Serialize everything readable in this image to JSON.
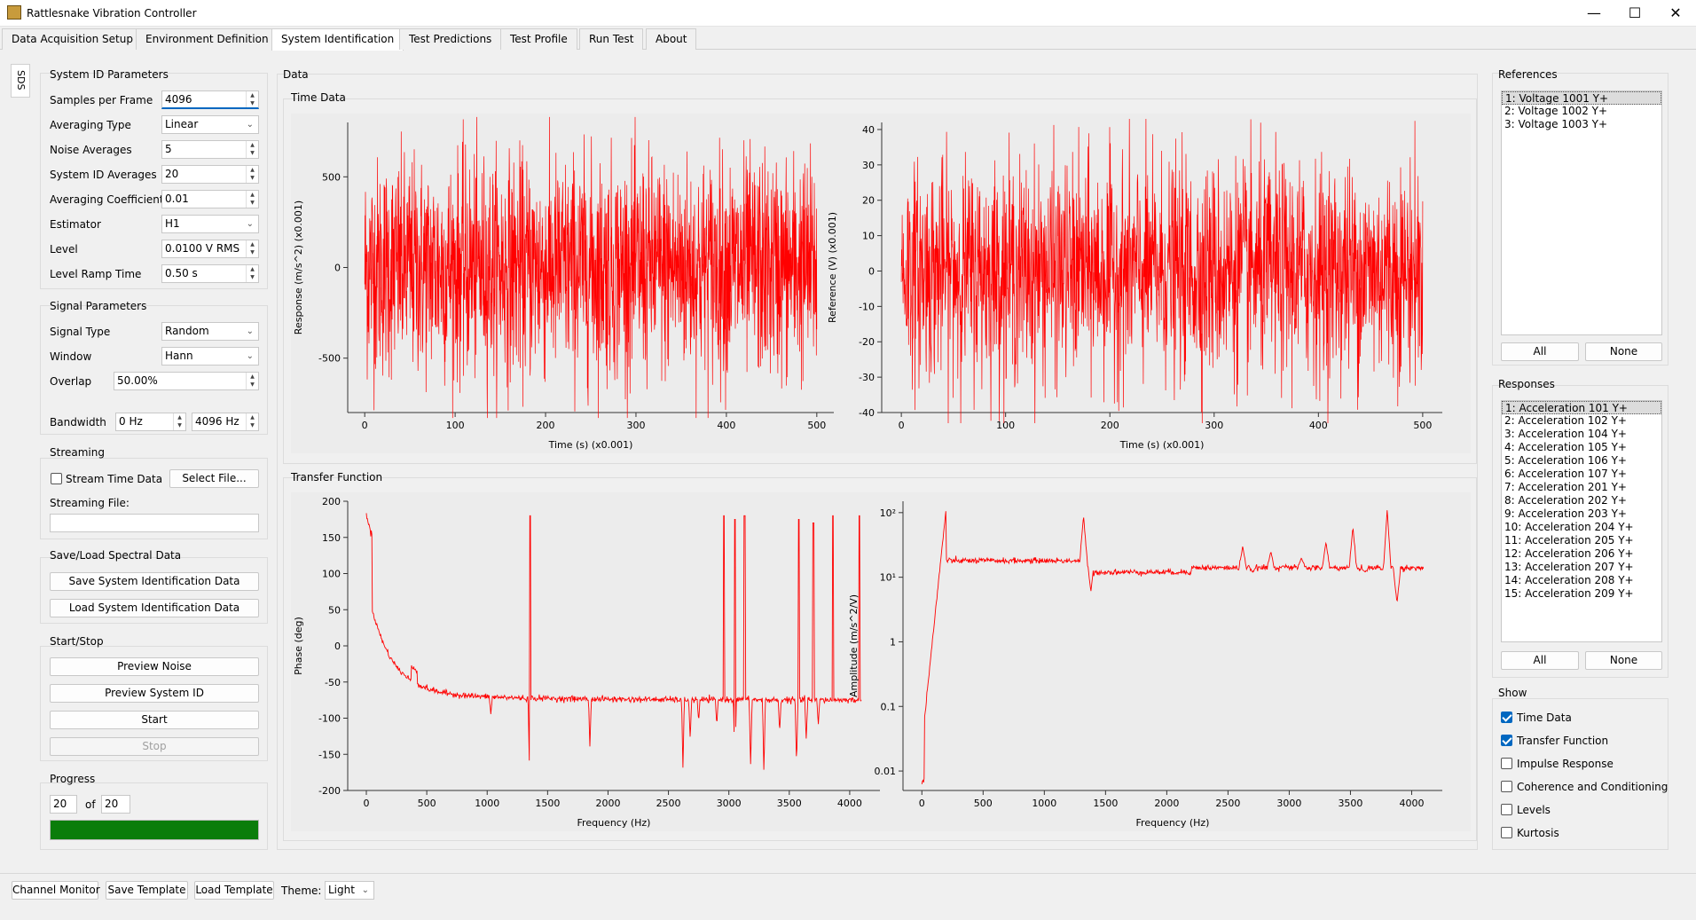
{
  "window": {
    "title": "Rattlesnake Vibration Controller",
    "minimize": "—",
    "maximize": "☐",
    "close": "✕"
  },
  "tabs": [
    "Data Acquisition Setup",
    "Environment Definition",
    "System Identification",
    "Test Predictions",
    "Test Profile",
    "Run Test",
    "About"
  ],
  "side_tab": "SDS",
  "sysid": {
    "title": "System ID Parameters",
    "samples_per_frame_label": "Samples per Frame",
    "samples_per_frame": "4096",
    "averaging_type_label": "Averaging Type",
    "averaging_type": "Linear",
    "noise_averages_label": "Noise Averages",
    "noise_averages": "5",
    "sysid_averages_label": "System ID Averages",
    "sysid_averages": "20",
    "averaging_coefficient_label": "Averaging Coefficient",
    "averaging_coefficient": "0.01",
    "estimator_label": "Estimator",
    "estimator": "H1",
    "level_label": "Level",
    "level": "0.0100 V RMS",
    "level_ramp_label": "Level Ramp Time",
    "level_ramp": "0.50 s"
  },
  "signal": {
    "title": "Signal Parameters",
    "signal_type_label": "Signal Type",
    "signal_type": "Random",
    "window_label": "Window",
    "window": "Hann",
    "overlap_label": "Overlap",
    "overlap": "50.00%",
    "bandwidth_label": "Bandwidth",
    "bw_low": "0 Hz",
    "bw_high": "4096 Hz"
  },
  "streaming": {
    "title": "Streaming",
    "stream_label": "Stream Time Data",
    "select_file": "Select File...",
    "file_label": "Streaming File:",
    "file_value": ""
  },
  "saveload": {
    "title": "Save/Load Spectral Data",
    "save": "Save System Identification Data",
    "load": "Load System Identification Data"
  },
  "startstop": {
    "title": "Start/Stop",
    "preview_noise": "Preview Noise",
    "preview_sysid": "Preview System ID",
    "start": "Start",
    "stop": "Stop"
  },
  "progress": {
    "title": "Progress",
    "current": "20",
    "of_label": "of",
    "total": "20",
    "fraction": 1.0
  },
  "data_group": {
    "title": "Data",
    "time_title": "Time Data",
    "tf_title": "Transfer Function"
  },
  "chart_data": [
    {
      "type": "line",
      "name": "response-time",
      "xlabel": "Time (s) (x0.001)",
      "ylabel": "Response (m/s^2) (x0.001)",
      "xlim": [
        0,
        500
      ],
      "ylim": [
        -800,
        800
      ],
      "xticks": [
        "0",
        "100",
        "200",
        "300",
        "400",
        "500"
      ],
      "yticks": [
        "500",
        "0",
        "-500"
      ],
      "series_color": "#ff0000",
      "amplitude": 300,
      "peak": 830
    },
    {
      "type": "line",
      "name": "reference-time",
      "xlabel": "Time (s) (x0.001)",
      "ylabel": "Reference (V) (x0.001)",
      "xlim": [
        0,
        500
      ],
      "ylim": [
        -40,
        42
      ],
      "xticks": [
        "0",
        "100",
        "200",
        "300",
        "400",
        "500"
      ],
      "yticks": [
        "40",
        "30",
        "20",
        "10",
        "0",
        "-10",
        "-20",
        "-30",
        "-40"
      ],
      "series_color": "#ff0000",
      "amplitude": 15,
      "peak": 43
    },
    {
      "type": "line",
      "name": "phase-tf",
      "xlabel": "Frequency (Hz)",
      "ylabel": "Phase (deg)",
      "xlim": [
        0,
        4096
      ],
      "ylim": [
        -200,
        200
      ],
      "xticks": [
        "0",
        "500",
        "1000",
        "1500",
        "2000",
        "2500",
        "3000",
        "3500",
        "4000"
      ],
      "yticks": [
        "200",
        "150",
        "100",
        "50",
        "0",
        "-50",
        "-100",
        "-150",
        "-200"
      ],
      "series_color": "#ff0000"
    },
    {
      "type": "line",
      "name": "amplitude-tf",
      "xlabel": "Frequency (Hz)",
      "ylabel": "Amplitude (m/s^2/V)",
      "xlim": [
        0,
        4096
      ],
      "yscale": "log",
      "ylim": [
        0.005,
        150
      ],
      "xticks": [
        "0",
        "500",
        "1000",
        "1500",
        "2000",
        "2500",
        "3000",
        "3500",
        "4000"
      ],
      "yticks": [
        "10²",
        "10¹",
        "1",
        "0.1",
        "0.01"
      ],
      "series_color": "#ff0000"
    }
  ],
  "references": {
    "title": "References",
    "items": [
      "1: Voltage 1001 Y+",
      "2: Voltage 1002 Y+",
      "3: Voltage 1003 Y+"
    ],
    "all": "All",
    "none": "None"
  },
  "responses": {
    "title": "Responses",
    "items": [
      "1: Acceleration 101 Y+",
      "2: Acceleration 102 Y+",
      "3: Acceleration 104 Y+",
      "4: Acceleration 105 Y+",
      "5: Acceleration 106 Y+",
      "6: Acceleration 107 Y+",
      "7: Acceleration 201 Y+",
      "8: Acceleration 202 Y+",
      "9: Acceleration 203 Y+",
      "10: Acceleration 204 Y+",
      "11: Acceleration 205 Y+",
      "12: Acceleration 206 Y+",
      "13: Acceleration 207 Y+",
      "14: Acceleration 208 Y+",
      "15: Acceleration 209 Y+"
    ],
    "all": "All",
    "none": "None"
  },
  "show": {
    "title": "Show",
    "time_data": "Time Data",
    "transfer_function": "Transfer Function",
    "impulse_response": "Impulse Response",
    "coherence": "Coherence and Conditioning",
    "levels": "Levels",
    "kurtosis": "Kurtosis"
  },
  "bottom": {
    "channel_monitor": "Channel Monitor",
    "save_template": "Save Template",
    "load_template": "Load Template",
    "theme_label": "Theme:",
    "theme": "Light"
  }
}
